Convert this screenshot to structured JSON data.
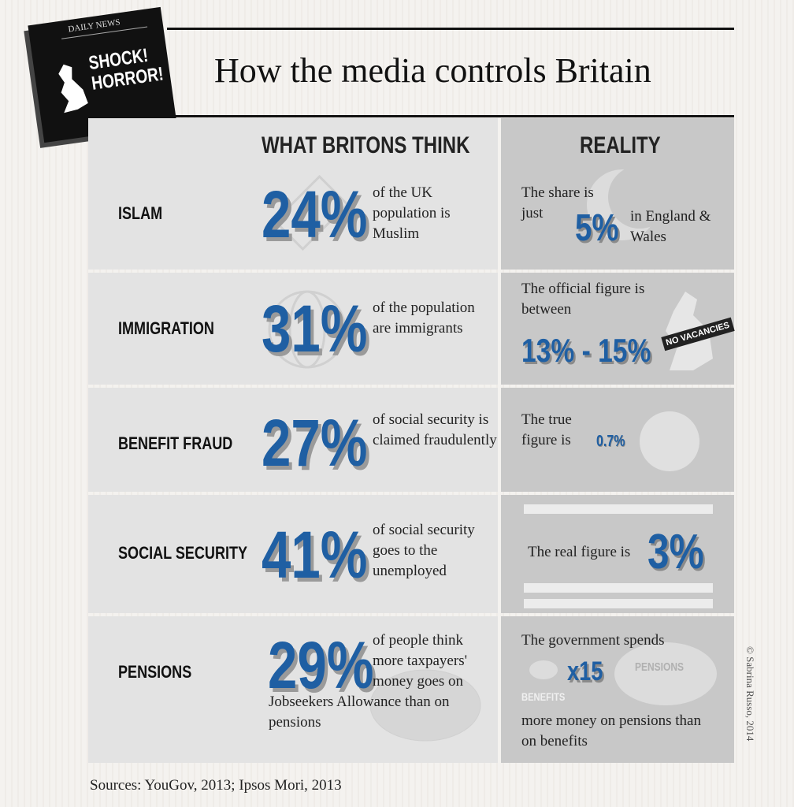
{
  "header": {
    "badge_top": "DAILY NEWS",
    "badge": "SHOCK! HORROR!",
    "title": "How the media controls Britain"
  },
  "columns": {
    "perceived": "WHAT BRITONS THINK",
    "reality": "REALITY"
  },
  "rows": [
    {
      "topic": "ISLAM",
      "perceived_value": "24%",
      "perceived_text": "of the UK population is Muslim",
      "reality_before": "The share is just",
      "reality_value": "5%",
      "reality_after": "in England & Wales"
    },
    {
      "topic": "IMMIGRATION",
      "perceived_value": "31%",
      "perceived_text": "of the population are immigrants",
      "reality_before": "The official figure is between",
      "reality_value": "13% - 15%",
      "reality_sign": "NO VACANCIES"
    },
    {
      "topic": "BENEFIT FRAUD",
      "perceived_value": "27%",
      "perceived_text": "of social security is claimed fraudulently",
      "reality_before": "The true figure is",
      "reality_value": "0.7%"
    },
    {
      "topic": "SOCIAL SECURITY",
      "perceived_value": "41%",
      "perceived_text": "of social security goes to the unemployed",
      "reality_before": "The real figure is",
      "reality_value": "3%"
    },
    {
      "topic": "PENSIONS",
      "perceived_value": "29%",
      "perceived_text": "of people think more taxpayers' money goes on",
      "perceived_text_more": "Jobseekers Allowance than on pensions",
      "reality_before": "The government spends",
      "reality_value": "x15",
      "reality_label_left": "BENEFITS",
      "reality_label_right": "PENSIONS",
      "reality_after": "more money on pensions than on benefits"
    }
  ],
  "sources": "Sources: YouGov, 2013; Ipsos Mori, 2013",
  "credit": "© Sabrina Russo, 2014"
}
